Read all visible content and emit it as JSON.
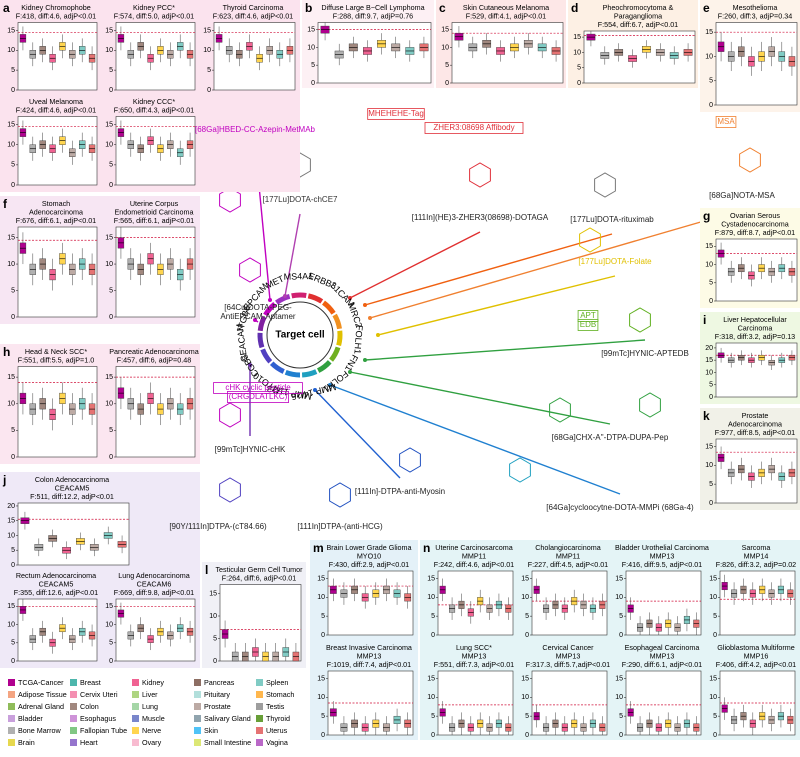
{
  "panels": [
    {
      "letter": "a",
      "plots": [
        {
          "title": [
            "Kidney Chromophobe"
          ],
          "stats": "F:418, diff:4.6, adjP<0.01",
          "ylim": [
            0,
            17
          ],
          "yticks": [
            0,
            5,
            10,
            15
          ],
          "threshold": 14.5,
          "medians": [
            13,
            9,
            10,
            8,
            11,
            9,
            10,
            8
          ]
        },
        {
          "title": [
            "Kidney PCC*"
          ],
          "stats": "F:574, diff:5.0, adjP<0.01",
          "ylim": [
            0,
            17
          ],
          "yticks": [
            0,
            5,
            10,
            15
          ],
          "threshold": 14.5,
          "medians": [
            13,
            9,
            11,
            8,
            10,
            9,
            11,
            9
          ]
        },
        {
          "title": [
            "Thyroid Carcinoma"
          ],
          "stats": "F:623, diff:4.6, adjP<0.01",
          "ylim": [
            0,
            17
          ],
          "yticks": [
            0,
            5,
            10,
            15
          ],
          "threshold": 14.5,
          "medians": [
            13,
            10,
            9,
            11,
            8,
            10,
            9,
            10
          ]
        },
        {
          "title": [
            "Uveal Melanoma"
          ],
          "stats": "F:424, diff:4.6, adjP<0.01",
          "ylim": [
            0,
            17
          ],
          "yticks": [
            0,
            5,
            10,
            15
          ],
          "threshold": 14.5,
          "medians": [
            13,
            9,
            10,
            9,
            11,
            8,
            10,
            9
          ]
        },
        {
          "title": [
            "Kidney CCC*"
          ],
          "stats": "F:650, diff:4.3, adjP<0.01",
          "ylim": [
            0,
            17
          ],
          "yticks": [
            0,
            5,
            10,
            15
          ],
          "threshold": 14.5,
          "medians": [
            13,
            10,
            9,
            11,
            9,
            10,
            8,
            10
          ]
        }
      ]
    },
    {
      "letter": "b",
      "plots": [
        {
          "title": [
            "Diffuse Large B−Cell Lymphoma"
          ],
          "stats": "F:288, diff:9.7, adjP=0.76",
          "ylim": [
            0,
            17
          ],
          "yticks": [
            0,
            5,
            10,
            15
          ],
          "threshold": 15,
          "medians": [
            15,
            8,
            10,
            9,
            11,
            10,
            9,
            10
          ]
        }
      ]
    },
    {
      "letter": "c",
      "plots": [
        {
          "title": [
            "Skin Cutaneous Melanoma"
          ],
          "stats": "F:529, diff:4.1, adjP<0.01",
          "ylim": [
            0,
            17
          ],
          "yticks": [
            0,
            5,
            10,
            15
          ],
          "threshold": 14,
          "medians": [
            13,
            10,
            11,
            9,
            10,
            11,
            10,
            9
          ]
        }
      ]
    },
    {
      "letter": "d",
      "plots": [
        {
          "title": [
            "Pheochromocytoma  &",
            "Paraganglioma"
          ],
          "stats": "F:554, diff:6.7, adjP<0.01",
          "ylim": [
            0,
            17
          ],
          "yticks": [
            0,
            5,
            10,
            15
          ],
          "threshold": 15.5,
          "medians": [
            15,
            9,
            10,
            8,
            11,
            10,
            9,
            10
          ]
        }
      ]
    },
    {
      "letter": "e",
      "plots": [
        {
          "title": [
            "Mesothelioma"
          ],
          "stats": "F:260, diff:3, adjP=0.34",
          "ylim": [
            0,
            17
          ],
          "yticks": [
            0,
            5,
            10,
            15
          ],
          "threshold": 15,
          "medians": [
            12,
            10,
            11,
            9,
            10,
            11,
            10,
            9
          ]
        }
      ]
    },
    {
      "letter": "f",
      "plots": [
        {
          "title": [
            "Stomach",
            "Adenocarcinoma"
          ],
          "stats": "F:676, diff:6.1, adjP<0.01",
          "ylim": [
            0,
            17
          ],
          "yticks": [
            0,
            5,
            10,
            15
          ],
          "threshold": 14.5,
          "medians": [
            13,
            9,
            10,
            8,
            11,
            9,
            10,
            9
          ]
        },
        {
          "title": [
            "Uterine Corpus",
            "Endometrioid Carcinoma"
          ],
          "stats": "F:565, diff:6.1, adjP<0.01",
          "ylim": [
            0,
            17
          ],
          "yticks": [
            0,
            5,
            10,
            15
          ],
          "threshold": 15,
          "medians": [
            14,
            10,
            9,
            11,
            9,
            10,
            8,
            10
          ]
        }
      ]
    },
    {
      "letter": "g",
      "plots": [
        {
          "title": [
            "Ovarian Serous",
            "Cystadenocarcinoma"
          ],
          "stats": "F:879, diff:8.7, adjP<0.01",
          "ylim": [
            0,
            17
          ],
          "yticks": [
            0,
            5,
            10,
            15
          ],
          "threshold": 13,
          "medians": [
            13,
            8,
            9,
            7,
            9,
            8,
            9,
            8
          ]
        }
      ]
    },
    {
      "letter": "h",
      "plots": [
        {
          "title": [
            "Head & Neck SCC*"
          ],
          "stats": "F:551, diff:5.5, adjP=1.0",
          "ylim": [
            0,
            17
          ],
          "yticks": [
            0,
            5,
            10,
            15
          ],
          "threshold": 14,
          "medians": [
            11,
            9,
            10,
            8,
            11,
            9,
            10,
            9
          ]
        },
        {
          "title": [
            "Pancreatic Adenocarcinoma"
          ],
          "stats": "F:457, diff:6, adjP=0.48",
          "ylim": [
            0,
            17
          ],
          "yticks": [
            0,
            5,
            10,
            15
          ],
          "threshold": 15,
          "medians": [
            12,
            10,
            9,
            11,
            9,
            10,
            9,
            10
          ]
        }
      ]
    },
    {
      "letter": "i",
      "plots": [
        {
          "title": [
            "Liver Hepatocellular",
            "Carcinoma"
          ],
          "stats": "F:318, diff:3.2, adjP=0.13",
          "ylim": [
            0,
            22
          ],
          "yticks": [
            0,
            5,
            10,
            15,
            20
          ],
          "threshold": 17,
          "medians": [
            17,
            15,
            16,
            15,
            16,
            14,
            15,
            16
          ]
        }
      ]
    },
    {
      "letter": "k",
      "plots": [
        {
          "title": [
            "Prostate",
            "Adenocarcinoma"
          ],
          "stats": "F:977, diff:8.5, adjP<0.01",
          "ylim": [
            0,
            17
          ],
          "yticks": [
            0,
            5,
            10,
            15
          ],
          "threshold": 13.5,
          "medians": [
            12,
            8,
            9,
            7,
            8,
            9,
            7,
            8
          ]
        }
      ]
    },
    {
      "letter": "j",
      "plots": [
        {
          "title": [
            "Colon Adenocarcinoma",
            "CEACAM5"
          ],
          "stats": "F:511, diff:12.2, adjP<0.01",
          "ylim": [
            0,
            21
          ],
          "yticks": [
            0,
            5,
            10,
            15,
            20
          ],
          "threshold": 15.5,
          "medians": [
            15,
            6,
            9,
            5,
            8,
            6,
            10,
            7
          ]
        },
        {
          "title": [
            "Rectum Adenocarcinoma",
            "CEACAM5"
          ],
          "stats": "F:355, diff:12.6, adjP<0.01",
          "ylim": [
            0,
            17
          ],
          "yticks": [
            0,
            5,
            10,
            15
          ],
          "threshold": 15,
          "medians": [
            14,
            6,
            8,
            5,
            9,
            6,
            8,
            7
          ]
        },
        {
          "title": [
            "Lung Adenocarcinoma",
            "CEACAM6"
          ],
          "stats": "F:669, diff:9.8, adjP<0.01",
          "ylim": [
            0,
            17
          ],
          "yticks": [
            0,
            5,
            10,
            15
          ],
          "threshold": 15,
          "medians": [
            13,
            7,
            9,
            6,
            8,
            7,
            9,
            8
          ]
        }
      ]
    },
    {
      "letter": "l",
      "plots": [
        {
          "title": [
            "Testicular Germ Cell Tumor"
          ],
          "stats": "F:264, diff:6, adjP<0.01",
          "ylim": [
            0,
            17
          ],
          "yticks": [
            0,
            5,
            10,
            15
          ],
          "threshold": 7,
          "medians": [
            6,
            1,
            1,
            2,
            1,
            1,
            2,
            1
          ]
        }
      ]
    },
    {
      "letter": "m",
      "plots": [
        {
          "title": [
            "Brain Lower Grade Glioma",
            "MYO10"
          ],
          "stats": "F:430, diff:2.9, adjP<0.01",
          "ylim": [
            0,
            17
          ],
          "yticks": [
            0,
            5,
            10,
            15
          ],
          "threshold": 13,
          "medians": [
            12,
            11,
            12,
            10,
            11,
            12,
            11,
            10
          ]
        },
        {
          "title": [
            "Breast Invasive Carcinoma",
            "MMP13"
          ],
          "stats": "F:1019, diff:7.4, adjP<0.01",
          "ylim": [
            0,
            17
          ],
          "yticks": [
            0,
            5,
            10,
            15
          ],
          "threshold": 8.5,
          "medians": [
            6,
            2,
            3,
            2,
            3,
            2,
            4,
            3
          ]
        }
      ]
    },
    {
      "letter": "n",
      "plots": [
        {
          "title": [
            "Uterine Carcinosarcoma",
            "MMP11"
          ],
          "stats": "F:242, diff:4.6, adjP<0.01",
          "ylim": [
            0,
            17
          ],
          "yticks": [
            0,
            5,
            10,
            15
          ],
          "threshold": 8,
          "medians": [
            12,
            7,
            8,
            6,
            9,
            7,
            8,
            7
          ]
        },
        {
          "title": [
            "Cholangiocarcinoma",
            "MMP11"
          ],
          "stats": "F:227, diff:4.5, adjP<0.01",
          "ylim": [
            0,
            17
          ],
          "yticks": [
            0,
            5,
            10,
            15
          ],
          "threshold": 9,
          "medians": [
            12,
            7,
            8,
            7,
            9,
            8,
            7,
            8
          ]
        },
        {
          "title": [
            "Bladder Urothelial Carcinoma",
            "MMP13"
          ],
          "stats": "F:416, diff:9.5, adjP<0.01",
          "ylim": [
            0,
            17
          ],
          "yticks": [
            0,
            5,
            10,
            15
          ],
          "threshold": 9,
          "medians": [
            7,
            2,
            3,
            2,
            3,
            2,
            4,
            3
          ]
        },
        {
          "title": [
            "Sarcoma",
            "MMP14"
          ],
          "stats": "F:826, diff:3.2, adjP=0.02",
          "ylim": [
            0,
            17
          ],
          "yticks": [
            0,
            5,
            10,
            15
          ],
          "threshold": 9.5,
          "medians": [
            13,
            11,
            12,
            11,
            12,
            11,
            12,
            11
          ]
        },
        {
          "title": [
            "Lung SCC*",
            "MMP13"
          ],
          "stats": "F:551, diff:7.3, adjP<0.01",
          "ylim": [
            0,
            17
          ],
          "yticks": [
            0,
            5,
            10,
            15
          ],
          "threshold": 8,
          "medians": [
            6,
            2,
            3,
            2,
            3,
            2,
            3,
            2
          ]
        },
        {
          "title": [
            "Cervical Cancer",
            "MMP13"
          ],
          "stats": "F:317.3, diff:5.7,adjP<0.01",
          "ylim": [
            0,
            17
          ],
          "yticks": [
            0,
            5,
            10,
            15
          ],
          "threshold": 8,
          "medians": [
            5,
            2,
            3,
            2,
            3,
            2,
            3,
            2
          ]
        },
        {
          "title": [
            "Esophageal Carcinoma",
            "MMP13"
          ],
          "stats": "F:290, diff:6.1, adjP<0.01",
          "ylim": [
            0,
            17
          ],
          "yticks": [
            0,
            5,
            10,
            15
          ],
          "threshold": 8,
          "medians": [
            6,
            2,
            3,
            2,
            3,
            2,
            3,
            2
          ]
        },
        {
          "title": [
            "Glioblastoma Multiforme",
            "MMP16"
          ],
          "stats": "F:406, diff:4.2, adjP<0.01",
          "ylim": [
            0,
            17
          ],
          "yticks": [
            0,
            5,
            10,
            15
          ],
          "threshold": 8.5,
          "medians": [
            7,
            4,
            5,
            3,
            5,
            4,
            5,
            4
          ]
        }
      ]
    }
  ],
  "center_label": "Target cell",
  "antigens": [
    "EPCAM",
    "MET",
    "MS4A1",
    "ERBB3",
    "L1CAM",
    "MRC2",
    "FOLH1",
    "FN1",
    "FOLH1",
    "MMP 14/16",
    "MMP 11/13",
    "MYO10",
    "CGB8",
    "CEACAM",
    "ITGB6"
  ],
  "compounds": [
    {
      "lines": [
        "[68Ga]HBED-CC-Azepin-MetMAb"
      ]
    },
    {
      "lines": [
        "[177Lu]DOTA-chCE7"
      ]
    },
    {
      "lines": [
        "MHEHEHE-Tag"
      ]
    },
    {
      "lines": [
        "ZHER3:08698 Affibody"
      ]
    },
    {
      "lines": [
        "[111In](HE)3-ZHER3(08698)-DOTAGA"
      ]
    },
    {
      "lines": [
        "[177Lu]DOTA-rituximab"
      ]
    },
    {
      "lines": [
        "MSA"
      ]
    },
    {
      "lines": [
        "[68Ga]NOTA-MSA"
      ]
    },
    {
      "lines": [
        "[64Cu]DOTA-PEG-",
        "AntiEPCAM-Aptamer"
      ]
    },
    {
      "lines": [
        "[177Lu]DOTA-Folate"
      ]
    },
    {
      "lines": [
        "APT",
        "EDB"
      ]
    },
    {
      "lines": [
        "[99mTc]HYNIC-APTEDB"
      ]
    },
    {
      "lines": [
        "cHK cyclic peptide",
        "(CRGDLATLKC)"
      ]
    },
    {
      "lines": [
        "[99mTc]HYNIC-cHK"
      ]
    },
    {
      "lines": [
        "[68Ga]CHX-A''-DTPA-DUPA-Pep"
      ]
    },
    {
      "lines": [
        "[111In]-DTPA-anti-Myosin"
      ]
    },
    {
      "lines": [
        "[64Ga]cycloocytne-DOTA-MMPi (68Ga-4)"
      ]
    },
    {
      "lines": [
        "[90Y/111In]DTPA-(cT84.66)"
      ]
    },
    {
      "lines": [
        "[111In]DTPA-(anti-HCG)"
      ]
    }
  ],
  "legend": [
    {
      "name": "TCGA-Cancer",
      "color": "#b0008f"
    },
    {
      "name": "Adipose Tissue",
      "color": "#f4a582"
    },
    {
      "name": "Adrenal Gland",
      "color": "#8fbc5a"
    },
    {
      "name": "Bladder",
      "color": "#c9a0dc"
    },
    {
      "name": "Bone Marrow",
      "color": "#b0b0b0"
    },
    {
      "name": "Brain",
      "color": "#e6d84e"
    },
    {
      "name": "Breast",
      "color": "#4db6ac"
    },
    {
      "name": "Cervix Uteri",
      "color": "#f48fb1"
    },
    {
      "name": "Colon",
      "color": "#a1887f"
    },
    {
      "name": "Esophagus",
      "color": "#ce93d8"
    },
    {
      "name": "Fallopian Tube",
      "color": "#81c784"
    },
    {
      "name": "Heart",
      "color": "#9575cd"
    },
    {
      "name": "Kidney",
      "color": "#f06292"
    },
    {
      "name": "Liver",
      "color": "#aed581"
    },
    {
      "name": "Lung",
      "color": "#a5d6a7"
    },
    {
      "name": "Muscle",
      "color": "#7986cb"
    },
    {
      "name": "Nerve",
      "color": "#ffd54f"
    },
    {
      "name": "Ovary",
      "color": "#f8bbd0"
    },
    {
      "name": "Pancreas",
      "color": "#8d6e63"
    },
    {
      "name": "Pituitary",
      "color": "#b2dfdb"
    },
    {
      "name": "Prostate",
      "color": "#bcaaa4"
    },
    {
      "name": "Salivary Gland",
      "color": "#90a4ae"
    },
    {
      "name": "Skin",
      "color": "#4fc3f7"
    },
    {
      "name": "Small Intestine",
      "color": "#dce775"
    },
    {
      "name": "Spleen",
      "color": "#80cbc4"
    },
    {
      "name": "Stomach",
      "color": "#ffb74d"
    },
    {
      "name": "Testis",
      "color": "#9e9e9e"
    },
    {
      "name": "Thyroid",
      "color": "#689f38"
    },
    {
      "name": "Uterus",
      "color": "#e57373"
    },
    {
      "name": "Vagina",
      "color": "#ba68c8"
    }
  ]
}
